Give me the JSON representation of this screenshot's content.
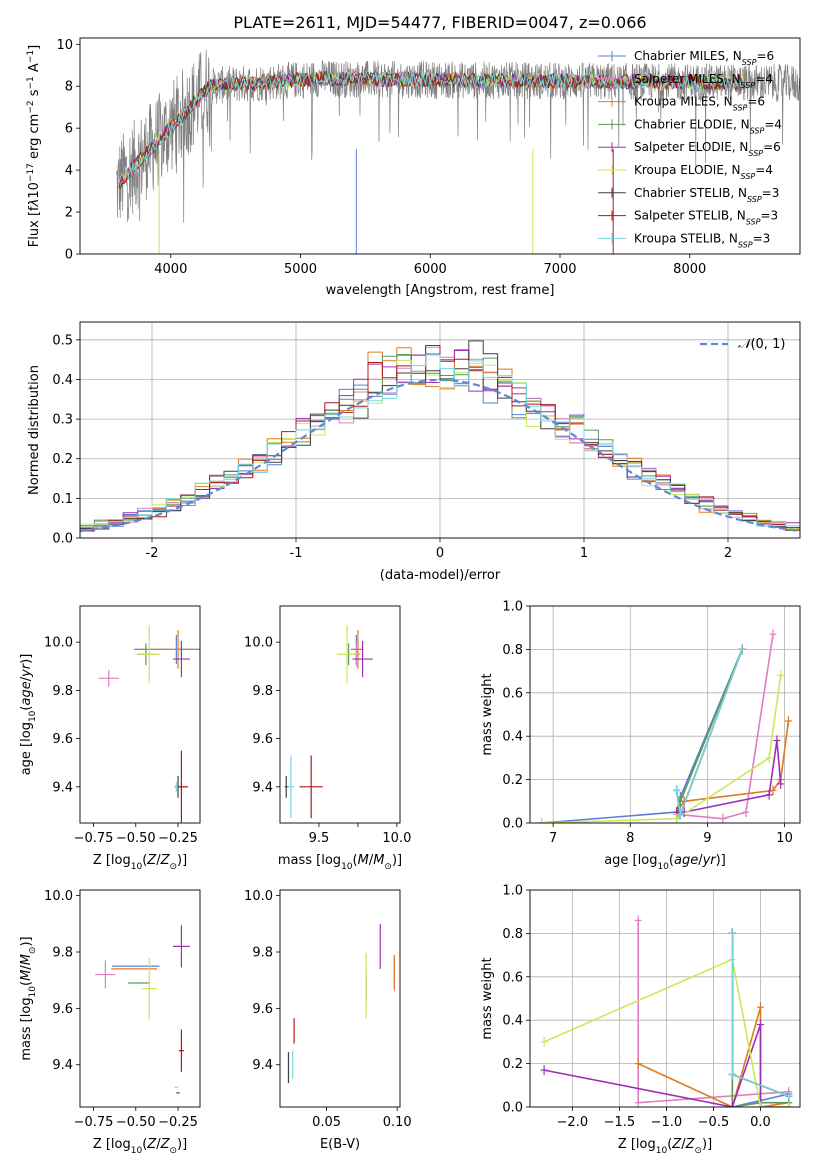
{
  "figure": {
    "title": "PLATE=2611, MJD=54477, FIBERID=0047, z=0.066"
  },
  "series": [
    {
      "name": "Chabrier MILES",
      "nssp": "6",
      "color": "#5b7fd6"
    },
    {
      "name": "Salpeter MILES",
      "nssp": "4",
      "color": "#e07fbf"
    },
    {
      "name": "Kroupa MILES",
      "nssp": "6",
      "color": "#e07a21"
    },
    {
      "name": "Chabrier ELODIE",
      "nssp": "4",
      "color": "#5a9a5a"
    },
    {
      "name": "Salpeter ELODIE",
      "nssp": "6",
      "color": "#9b30b5"
    },
    {
      "name": "Kroupa ELODIE",
      "nssp": "4",
      "color": "#c9e85a"
    },
    {
      "name": "Chabrier STELIB",
      "nssp": "3",
      "color": "#404040"
    },
    {
      "name": "Salpeter STELIB",
      "nssp": "3",
      "color": "#b01818"
    },
    {
      "name": "Kroupa STELIB",
      "nssp": "3",
      "color": "#74d8e0"
    }
  ],
  "chart_data": [
    {
      "id": "spectrum",
      "type": "line",
      "xlabel": "wavelength [Angstrom, rest frame]",
      "ylabel_html": "Flux [f<tspan font-style='italic'>λ</tspan>10<tspan baseline-shift='super' font-size='9'>−17</tspan> erg cm<tspan baseline-shift='super' font-size='9'>−2</tspan> s<tspan baseline-shift='super' font-size='9'>−1</tspan> A<tspan baseline-shift='super' font-size='9'>−1</tspan>]",
      "xlim": [
        3300,
        8850
      ],
      "ylim": [
        0,
        10.3
      ],
      "xticks": [
        4000,
        5000,
        6000,
        7000,
        8000
      ],
      "yticks": [
        0,
        2,
        4,
        6,
        8,
        10
      ],
      "data_color": "#808080",
      "data_description": "observed spectrum: rises from ~3.5 at 3600 A to ~8.5 by 4300 A, flat ~8.3 to 8800 A",
      "legend_loc": "right"
    },
    {
      "id": "residuals",
      "type": "histogram",
      "xlabel": "(data-model)/error",
      "ylabel": "Normed distribution",
      "xlim": [
        -2.5,
        2.5
      ],
      "ylim": [
        0,
        0.545
      ],
      "xticks": [
        -2,
        -1,
        0,
        1,
        2
      ],
      "yticks": [
        0.0,
        0.1,
        0.2,
        0.3,
        0.4,
        0.5
      ],
      "grid": true,
      "bin_width": 0.1,
      "reference_curve": {
        "label": "𝒩(0, 1)",
        "mean": 0,
        "sigma": 1,
        "color": "#5b8ad6",
        "style": "dashed"
      },
      "legend_loc": "upper right"
    },
    {
      "id": "age_vs_Z",
      "type": "scatter",
      "xlabel": "Z [log10(Z/Z⊙)]",
      "ylabel": "age [log10(age/yr)]",
      "xlim": [
        -0.83,
        -0.12
      ],
      "ylim": [
        9.25,
        10.15
      ],
      "xticks": [
        -0.75,
        -0.5,
        -0.25
      ],
      "xticklabels": [
        "−0.75",
        "−0.50",
        "−0.25"
      ],
      "yticks": [
        9.4,
        9.6,
        9.8,
        10.0
      ],
      "points": [
        {
          "s": 0,
          "x": -0.26,
          "y": 9.97,
          "ex": 0.5,
          "ey": 0.12
        },
        {
          "s": 1,
          "x": -0.66,
          "y": 9.85,
          "ex": 0.12,
          "ey": 0.07
        },
        {
          "s": 2,
          "x": -0.25,
          "y": 9.97,
          "ex": 0.48,
          "ey": 0.16
        },
        {
          "s": 3,
          "x": -0.44,
          "y": 9.95,
          "ex": 0.1,
          "ey": 0.09
        },
        {
          "s": 4,
          "x": -0.23,
          "y": 9.93,
          "ex": 0.1,
          "ey": 0.15
        },
        {
          "s": 5,
          "x": -0.42,
          "y": 9.95,
          "ex": 0.13,
          "ey": 0.24
        },
        {
          "s": 6,
          "x": -0.25,
          "y": 9.4,
          "ex": 0.04,
          "ey": 0.09
        },
        {
          "s": 7,
          "x": -0.23,
          "y": 9.4,
          "ex": 0.08,
          "ey": 0.3
        },
        {
          "s": 8,
          "x": -0.26,
          "y": 9.4,
          "ex": 0.02,
          "ey": 0.04
        }
      ]
    },
    {
      "id": "age_vs_mass",
      "type": "scatter",
      "xlabel": "mass [log10(M/M⊙)]",
      "ylabel": "",
      "xlim": [
        9.25,
        10.02
      ],
      "ylim": [
        9.25,
        10.15
      ],
      "xticks": [
        9.5,
        9.75,
        10.0
      ],
      "xticklabels": [
        "9.5",
        "",
        "10.0"
      ],
      "yticks": [
        9.4,
        9.6,
        9.8,
        10.0
      ],
      "points": [
        {
          "s": 0,
          "x": 9.74,
          "y": 9.97,
          "ex": 0.07,
          "ey": 0.12
        },
        {
          "s": 1,
          "x": 9.74,
          "y": 9.95,
          "ex": 0.05,
          "ey": 0.1
        },
        {
          "s": 2,
          "x": 9.75,
          "y": 9.97,
          "ex": 0.07,
          "ey": 0.16
        },
        {
          "s": 3,
          "x": 9.69,
          "y": 9.95,
          "ex": 0.04,
          "ey": 0.09
        },
        {
          "s": 4,
          "x": 9.78,
          "y": 9.93,
          "ex": 0.13,
          "ey": 0.15
        },
        {
          "s": 5,
          "x": 9.68,
          "y": 9.95,
          "ex": 0.13,
          "ey": 0.24
        },
        {
          "s": 6,
          "x": 9.29,
          "y": 9.4,
          "ex": 0.02,
          "ey": 0.09
        },
        {
          "s": 7,
          "x": 9.45,
          "y": 9.4,
          "ex": 0.15,
          "ey": 0.26
        },
        {
          "s": 8,
          "x": 9.32,
          "y": 9.4,
          "ex": 0.04,
          "ey": 0.26
        }
      ]
    },
    {
      "id": "weight_vs_age",
      "type": "line",
      "xlabel": "age [log10(age/yr)]",
      "ylabel": "mass weight",
      "xlim": [
        6.7,
        10.2
      ],
      "ylim": [
        0,
        1.0
      ],
      "xticks": [
        7,
        8,
        9,
        10
      ],
      "yticks": [
        0.0,
        0.2,
        0.4,
        0.6,
        0.8,
        1.0
      ],
      "grid": true,
      "series": [
        {
          "s": 0,
          "x": [
            6.85,
            8.6,
            8.65,
            9.45
          ],
          "y": [
            0.0,
            0.05,
            0.12,
            0.8
          ]
        },
        {
          "s": 1,
          "x": [
            8.6,
            9.2,
            9.5,
            9.85
          ],
          "y": [
            0.04,
            0.02,
            0.05,
            0.87
          ]
        },
        {
          "s": 2,
          "x": [
            8.6,
            8.7,
            9.85,
            9.95,
            10.05
          ],
          "y": [
            0.05,
            0.1,
            0.15,
            0.2,
            0.47
          ]
        },
        {
          "s": 3,
          "x": [
            8.6,
            8.65,
            9.45
          ],
          "y": [
            0.02,
            0.1,
            0.8
          ]
        },
        {
          "s": 4,
          "x": [
            8.6,
            8.7,
            9.8,
            9.9,
            9.95
          ],
          "y": [
            0.05,
            0.05,
            0.13,
            0.38,
            0.18
          ]
        },
        {
          "s": 5,
          "x": [
            6.85,
            8.6,
            9.8,
            9.95
          ],
          "y": [
            0.0,
            0.02,
            0.3,
            0.68
          ]
        },
        {
          "s": 6,
          "x": [
            8.6,
            8.65,
            9.45
          ],
          "y": [
            0.15,
            0.04,
            0.8
          ]
        },
        {
          "s": 7,
          "x": [
            8.6,
            8.65,
            9.45
          ],
          "y": [
            0.15,
            0.04,
            0.8
          ]
        },
        {
          "s": 8,
          "x": [
            8.6,
            8.65,
            9.45
          ],
          "y": [
            0.15,
            0.04,
            0.8
          ]
        }
      ]
    },
    {
      "id": "mass_vs_Z",
      "type": "scatter",
      "xlabel": "Z [log10(Z/Z⊙)]",
      "ylabel": "mass [log10(M/M⊙)]",
      "xlim": [
        -0.83,
        -0.12
      ],
      "ylim": [
        9.25,
        10.02
      ],
      "xticks": [
        -0.75,
        -0.5,
        -0.25
      ],
      "xticklabels": [
        "−0.75",
        "−0.50",
        "−0.25"
      ],
      "yticks": [
        9.4,
        9.6,
        9.8,
        10.0
      ],
      "points": [
        {
          "s": 0,
          "x": -0.5,
          "y": 9.75,
          "ex": 0.28,
          "ey": 0.0
        },
        {
          "s": 1,
          "x": -0.68,
          "y": 9.72,
          "ex": 0.12,
          "ey": 0.1
        },
        {
          "s": 2,
          "x": -0.51,
          "y": 9.74,
          "ex": 0.27,
          "ey": 0.0
        },
        {
          "s": 3,
          "x": -0.48,
          "y": 9.69,
          "ex": 0.13,
          "ey": 0.0
        },
        {
          "s": 4,
          "x": -0.23,
          "y": 9.82,
          "ex": 0.1,
          "ey": 0.15
        },
        {
          "s": 5,
          "x": -0.42,
          "y": 9.67,
          "ex": 0.09,
          "ey": 0.22
        },
        {
          "s": 6,
          "x": -0.25,
          "y": 9.3,
          "ex": 0.02,
          "ey": 0.0
        },
        {
          "s": 7,
          "x": -0.23,
          "y": 9.45,
          "ex": 0.03,
          "ey": 0.15
        },
        {
          "s": 8,
          "x": -0.26,
          "y": 9.32,
          "ex": 0.02,
          "ey": 0.0
        }
      ]
    },
    {
      "id": "mass_vs_ebv",
      "type": "scatter",
      "xlabel": "E(B-V)",
      "ylabel": "",
      "xlim": [
        0.017,
        0.102
      ],
      "ylim": [
        9.25,
        10.02
      ],
      "xticks": [
        0.05,
        0.1
      ],
      "xticklabels": [
        "0.05",
        "0.10"
      ],
      "yticks": [
        9.4,
        9.6,
        9.8,
        10.0
      ],
      "points": [
        {
          "s": 0,
          "x": 0.098,
          "y": 9.73,
          "ex": 0,
          "ey": 0.1
        },
        {
          "s": 1,
          "x": 0.098,
          "y": 9.72,
          "ex": 0,
          "ey": 0.12
        },
        {
          "s": 2,
          "x": 0.098,
          "y": 9.73,
          "ex": 0,
          "ey": 0.12
        },
        {
          "s": 3,
          "x": 0.078,
          "y": 9.68,
          "ex": 0,
          "ey": 0.11
        },
        {
          "s": 4,
          "x": 0.088,
          "y": 9.82,
          "ex": 0,
          "ey": 0.16
        },
        {
          "s": 5,
          "x": 0.078,
          "y": 9.68,
          "ex": 0,
          "ey": 0.23
        },
        {
          "s": 6,
          "x": 0.023,
          "y": 9.39,
          "ex": 0,
          "ey": 0.11
        },
        {
          "s": 7,
          "x": 0.027,
          "y": 9.52,
          "ex": 0,
          "ey": 0.09
        },
        {
          "s": 8,
          "x": 0.026,
          "y": 9.4,
          "ex": 0,
          "ey": 0.1
        }
      ]
    },
    {
      "id": "weight_vs_Z",
      "type": "line",
      "xlabel": "Z [log10(Z/Z⊙)]",
      "ylabel": "mass weight",
      "xlim": [
        -2.45,
        0.42
      ],
      "ylim": [
        0,
        1.0
      ],
      "xticks": [
        -2.0,
        -1.5,
        -1.0,
        -0.5,
        0.0
      ],
      "xticklabels": [
        "−2.0",
        "−1.5",
        "−1.0",
        "−0.5",
        "0.0"
      ],
      "yticks": [
        0.0,
        0.2,
        0.4,
        0.6,
        0.8,
        1.0
      ],
      "grid": true,
      "series": [
        {
          "s": 0,
          "x": [
            -0.3,
            -0.3,
            0.3
          ],
          "y": [
            0.8,
            0.0,
            0.06
          ]
        },
        {
          "s": 1,
          "x": [
            -1.3,
            -1.3,
            0.3
          ],
          "y": [
            0.86,
            0.02,
            0.07
          ]
        },
        {
          "s": 2,
          "x": [
            -1.3,
            -0.3,
            0.0,
            0.0,
            0.3
          ],
          "y": [
            0.2,
            0.0,
            0.46,
            0.0,
            0.02
          ]
        },
        {
          "s": 3,
          "x": [
            -0.3,
            -0.3,
            0.0,
            0.3
          ],
          "y": [
            0.8,
            0.0,
            0.02,
            0.02
          ]
        },
        {
          "s": 4,
          "x": [
            -2.3,
            -0.3,
            0.0,
            0.0,
            0.3
          ],
          "y": [
            0.17,
            0.0,
            0.38,
            0.0,
            0.0
          ]
        },
        {
          "s": 5,
          "x": [
            -2.3,
            -0.3,
            0.0,
            0.3
          ],
          "y": [
            0.3,
            0.68,
            0.0,
            0.0
          ]
        },
        {
          "s": 6,
          "x": [
            -0.3,
            -0.3,
            0.3
          ],
          "y": [
            0.8,
            0.15,
            0.05
          ]
        },
        {
          "s": 7,
          "x": [
            -0.3,
            -0.3,
            0.3
          ],
          "y": [
            0.8,
            0.15,
            0.05
          ]
        },
        {
          "s": 8,
          "x": [
            -0.3,
            -0.3,
            0.3
          ],
          "y": [
            0.8,
            0.15,
            0.05
          ]
        }
      ]
    }
  ]
}
